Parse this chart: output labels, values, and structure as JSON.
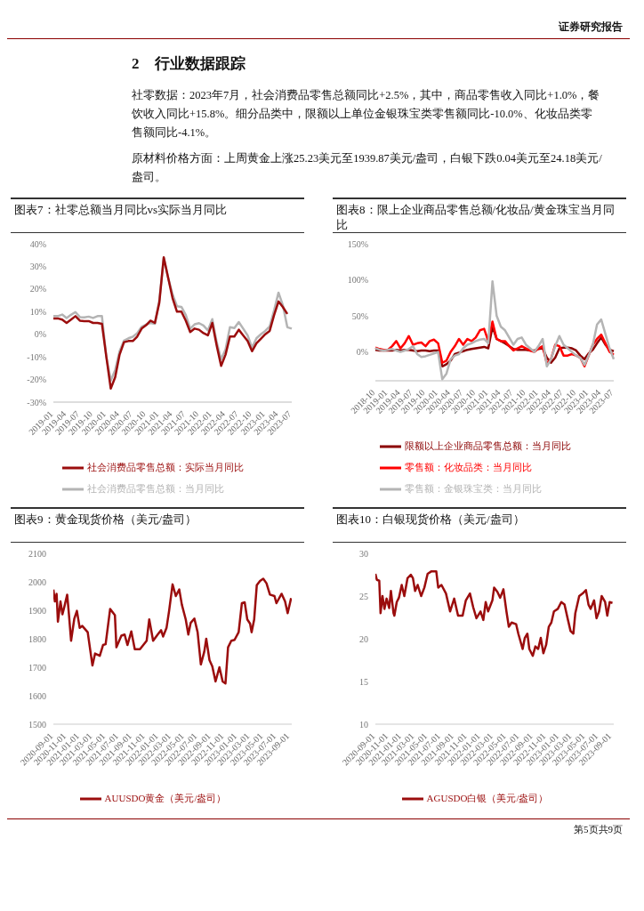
{
  "chart_data": [
    {
      "type": "line",
      "title": "图表7：社零总额当月同比vs实际当月同比",
      "annotations": [
        "证券研究报告",
        "2　行业数据跟踪",
        "社零数据：2023年7月，社会消费品零售总额同比+2.5%，其中，商品零售收入同比+1.0%，餐饮收入同比+15.8%。细分品类中，限额以上单位金银珠宝类零售额同比-10.0%、化妆品类零售额同比-4.1%。",
        "原材料价格方面：上周黄金上涨25.23美元至1939.87美元/盎司，白银下跌0.04美元至24.18美元/盎司。",
        "第5页共9页"
      ],
      "categories": [
        "2019-01",
        null,
        null,
        "2019-04",
        null,
        null,
        "2019-07",
        null,
        null,
        "2019-10",
        null,
        null,
        "2020-01",
        null,
        null,
        "2020-04",
        null,
        null,
        "2020-07",
        null,
        null,
        "2020-10",
        null,
        null,
        "2021-01",
        null,
        null,
        "2021-04",
        null,
        null,
        "2021-07",
        null,
        null,
        "2021-10",
        null,
        null,
        "2022-01",
        null,
        null,
        "2022-04",
        null,
        null,
        "2022-07",
        null,
        null,
        "2022-10",
        null,
        null,
        "2023-01",
        null,
        null,
        "2023-04",
        null,
        null,
        "2023-07"
      ],
      "series": [
        {
          "name": "社会消费品零售总额：当月同比",
          "color": "#b4b4b4",
          "values": [
            8,
            8,
            8.7,
            7.2,
            8.6,
            9.8,
            7.6,
            7.5,
            7.8,
            7.2,
            8,
            8,
            -10,
            -20.5,
            -15.8,
            -7.5,
            -2.8,
            -1.8,
            -1.1,
            0.5,
            3.3,
            4.3,
            5,
            4.6,
            15,
            33.8,
            25,
            17.7,
            12.4,
            12.1,
            8.5,
            2.5,
            4.4,
            4.9,
            3.9,
            1.7,
            6.7,
            -3.5,
            -11.1,
            -6.7,
            3.1,
            2.7,
            5.4,
            2.5,
            -0.5,
            -5.9,
            -1.8,
            0,
            1.5,
            3.5,
            10.6,
            18.4,
            12.7,
            3.1,
            2.5
          ]
        },
        {
          "name": "社会消费品零售总额：实际当月同比",
          "color": "#9b0d0d",
          "values": [
            7,
            7,
            6.5,
            5,
            6.5,
            8,
            6,
            5.8,
            5.8,
            5,
            5,
            4.6,
            -10,
            -24,
            -19,
            -9,
            -3.5,
            -3,
            -3,
            -1,
            2.5,
            4,
            6,
            5,
            14,
            34,
            25,
            16,
            10,
            10,
            6,
            1,
            2.5,
            2,
            0.5,
            -0.5,
            5,
            -5,
            -14,
            -9,
            -1,
            -1,
            2,
            -0.5,
            -3,
            -7.5,
            -4,
            -2,
            0,
            1.5,
            8.5,
            14.5,
            12,
            9,
            null
          ]
        }
      ],
      "ylim": [
        -30,
        40
      ],
      "yticks": [
        {
          "value": -30,
          "label": "-30%"
        },
        {
          "value": -20,
          "label": "-20%"
        },
        {
          "value": -10,
          "label": "-10%"
        },
        {
          "value": 0,
          "label": "0%"
        },
        {
          "value": 10,
          "label": "10%"
        },
        {
          "value": 20,
          "label": "20%"
        },
        {
          "value": 30,
          "label": "30%"
        },
        {
          "value": 40,
          "label": "40%"
        }
      ],
      "legend": "bottom"
    },
    {
      "type": "line",
      "title": "图表8：限上企业商品零售总额/化妆品/黄金珠宝当月同比",
      "categories": [
        "2018-10",
        null,
        null,
        "2019-01",
        null,
        null,
        "2019-04",
        null,
        null,
        "2019-07",
        null,
        null,
        "2019-10",
        null,
        null,
        "2020-01",
        null,
        null,
        "2020-04",
        null,
        null,
        "2020-07",
        null,
        null,
        "2020-10",
        null,
        null,
        "2021-01",
        null,
        null,
        "2021-04",
        null,
        null,
        "2021-07",
        null,
        null,
        "2021-10",
        null,
        null,
        "2022-01",
        null,
        null,
        "2022-04",
        null,
        null,
        "2022-07",
        null,
        null,
        "2022-10",
        null,
        null,
        "2023-01",
        null,
        null,
        "2023-04",
        null,
        null,
        "2023-07"
      ],
      "series": [
        {
          "name": "限额以上企业商品零售总额：当月同比",
          "color": "#8b0000",
          "values": [
            3,
            2,
            2,
            2,
            2,
            3,
            2,
            3,
            3,
            2,
            1,
            2,
            2,
            1,
            2,
            2,
            -20,
            -17,
            -12,
            -3,
            -1,
            1,
            3,
            4,
            5,
            6,
            7,
            5,
            35,
            18,
            15,
            12,
            8,
            4,
            3,
            3,
            3,
            2,
            2,
            4,
            5,
            -8,
            -15,
            -8,
            5,
            6,
            6,
            5,
            2,
            -5,
            -10,
            -2,
            3,
            12,
            20,
            10,
            3,
            1
          ]
        },
        {
          "name": "零售额：化妆品类：当月同比",
          "color": "#ff0000",
          "values": [
            6,
            4,
            3,
            3,
            8,
            15,
            5,
            12,
            22,
            10,
            12,
            13,
            8,
            15,
            17,
            12,
            -15,
            -12,
            0,
            8,
            18,
            10,
            18,
            15,
            20,
            30,
            32,
            15,
            42,
            18,
            15,
            15,
            8,
            2,
            5,
            8,
            5,
            2,
            0,
            5,
            8,
            -16,
            -10,
            10,
            8,
            -5,
            -5,
            -3,
            -5,
            -8,
            -20,
            -5,
            10,
            18,
            24,
            12,
            0,
            -4
          ]
        },
        {
          "name": "零售额：金银珠宝类：当月同比",
          "color": "#b4b4b4",
          "values": [
            5,
            3,
            2,
            3,
            4,
            2,
            0,
            2,
            4,
            8,
            -3,
            -7,
            -6,
            -4,
            -2,
            0,
            -38,
            -30,
            -10,
            -5,
            -3,
            5,
            10,
            12,
            15,
            17,
            18,
            12,
            98,
            50,
            35,
            30,
            20,
            10,
            18,
            20,
            10,
            5,
            0,
            8,
            18,
            -20,
            -10,
            8,
            22,
            10,
            5,
            0,
            -5,
            -8,
            -18,
            -5,
            10,
            38,
            45,
            25,
            5,
            -10
          ]
        }
      ],
      "ylim": [
        -40,
        150
      ],
      "yticks": [
        {
          "value": 0,
          "label": "0%"
        },
        {
          "value": 50,
          "label": "50%"
        },
        {
          "value": 100,
          "label": "100%"
        },
        {
          "value": 150,
          "label": "150%"
        }
      ],
      "legend": "bottom"
    },
    {
      "type": "line",
      "title": "图表9：黄金现货价格（美元/盎司）",
      "x": [
        "2020-09-01",
        "2020-09-08",
        "2020-09-16",
        "2020-09-22",
        "2020-10-04",
        "2020-10-13",
        "2020-10-22",
        "2020-11-04",
        "2020-11-12",
        "2020-11-22",
        "2020-12-07",
        "2020-12-19",
        "2021-01-01",
        "2021-01-13",
        "2021-02-07",
        "2021-03-01",
        "2021-03-13",
        "2021-04-04",
        "2021-04-19",
        "2021-05-01",
        "2021-05-22",
        "2021-06-13",
        "2021-06-20",
        "2021-07-13",
        "2021-07-28",
        "2021-08-10",
        "2021-08-28",
        "2021-09-13",
        "2021-10-07",
        "2021-11-07",
        "2021-11-19",
        "2021-12-07",
        "2021-12-28",
        "2022-01-13",
        "2022-01-22",
        "2022-02-07",
        "2022-02-19",
        "2022-03-07",
        "2022-03-22",
        "2022-04-07",
        "2022-04-19",
        "2022-05-07",
        "2022-05-19",
        "2022-05-30",
        "2022-06-16",
        "2022-07-01",
        "2022-07-16",
        "2022-08-01",
        "2022-08-10",
        "2022-08-25",
        "2022-09-07",
        "2022-09-22",
        "2022-10-10",
        "2022-10-25",
        "2022-11-07",
        "2022-11-19",
        "2022-12-04",
        "2022-12-19",
        "2023-01-07",
        "2023-01-22",
        "2023-02-04",
        "2023-02-16",
        "2023-03-01",
        "2023-03-08",
        "2023-03-20",
        "2023-04-01",
        "2023-04-16",
        "2023-05-01",
        "2023-05-16",
        "2023-06-01",
        "2023-06-22",
        "2023-07-01",
        "2023-07-25",
        "2023-08-10",
        "2023-08-22",
        "2023-09-07"
      ],
      "series": [
        {
          "name": "AUUSDO黄金（美元/盎司）",
          "color": "#9b0d0d",
          "values": [
            1973,
            1931,
            1958,
            1860,
            1931,
            1886,
            1913,
            1955,
            1886,
            1793,
            1871,
            1898,
            1838,
            1845,
            1823,
            1706,
            1748,
            1740,
            1778,
            1781,
            1905,
            1883,
            1770,
            1811,
            1815,
            1778,
            1826,
            1763,
            1763,
            1793,
            1868,
            1793,
            1815,
            1830,
            1808,
            1838,
            1898,
            1991,
            1950,
            1973,
            1920,
            1868,
            1815,
            1856,
            1871,
            1823,
            1710,
            1755,
            1800,
            1725,
            1703,
            1650,
            1700,
            1650,
            1643,
            1770,
            1793,
            1796,
            1823,
            1925,
            1928,
            1868,
            1853,
            1823,
            1868,
            1988,
            2003,
            2011,
            1995,
            1955,
            1950,
            1925,
            1958,
            1931,
            1890,
            1943
          ]
        }
      ],
      "xlim": [
        "2020-09-01",
        "2023-09-10"
      ],
      "xticks": [
        "2020-09-01",
        "2020-11-01",
        "2021-01-01",
        "2021-03-01",
        "2021-05-01",
        "2021-07-01",
        "2021-09-01",
        "2021-11-01",
        "2022-01-01",
        "2022-03-01",
        "2022-05-01",
        "2022-07-01",
        "2022-09-01",
        "2022-11-01",
        "2023-01-01",
        "2023-03-01",
        "2023-05-01",
        "2023-07-01",
        "2023-09-01"
      ],
      "ylim": [
        1500,
        2100
      ],
      "yticks": [
        1500,
        1600,
        1700,
        1800,
        1900,
        2000,
        2100
      ],
      "legend": "bottom"
    },
    {
      "type": "line",
      "title": "图表10：白银现货价格（美元/盎司）",
      "x": [
        "2020-09-01",
        "2020-09-08",
        "2020-09-19",
        "2020-09-25",
        "2020-10-04",
        "2020-10-13",
        "2020-10-23",
        "2020-11-04",
        "2020-11-12",
        "2020-11-24",
        "2020-11-28",
        "2020-12-09",
        "2020-12-19",
        "2021-01-01",
        "2021-01-13",
        "2021-01-28",
        "2021-02-12",
        "2021-02-22",
        "2021-03-04",
        "2021-03-16",
        "2021-04-01",
        "2021-04-16",
        "2021-05-01",
        "2021-05-19",
        "2021-06-10",
        "2021-06-19",
        "2021-07-04",
        "2021-07-25",
        "2021-08-13",
        "2021-09-01",
        "2021-09-19",
        "2021-10-10",
        "2021-10-25",
        "2021-11-13",
        "2021-11-28",
        "2021-12-13",
        "2022-01-01",
        "2022-01-14",
        "2022-01-25",
        "2022-02-05",
        "2022-02-25",
        "2022-03-05",
        "2022-03-20",
        "2022-04-02",
        "2022-04-17",
        "2022-05-01",
        "2022-05-12",
        "2022-05-25",
        "2022-06-15",
        "2022-06-25",
        "2022-07-15",
        "2022-07-25",
        "2022-08-06",
        "2022-08-15",
        "2022-08-31",
        "2022-09-12",
        "2022-09-25",
        "2022-10-07",
        "2022-10-19",
        "2022-11-01",
        "2022-11-13",
        "2022-11-25",
        "2022-12-07",
        "2022-12-25",
        "2023-01-10",
        "2023-01-25",
        "2023-02-10",
        "2023-02-22",
        "2023-03-07",
        "2023-03-16",
        "2023-04-03",
        "2023-04-19",
        "2023-05-04",
        "2023-05-16",
        "2023-05-26",
        "2023-06-11",
        "2023-06-22",
        "2023-07-04",
        "2023-07-16",
        "2023-08-01",
        "2023-08-11",
        "2023-08-22",
        "2023-09-04"
      ],
      "series": [
        {
          "name": "AGUSDO白银（美元/盎司）",
          "color": "#9b0d0d",
          "values": [
            27.6,
            26.9,
            26.8,
            23.0,
            25.0,
            23.5,
            24.7,
            23.6,
            25.6,
            23.0,
            22.7,
            24.3,
            24.8,
            26.3,
            25.0,
            27.1,
            27.5,
            27.1,
            25.6,
            26.3,
            25.0,
            26.0,
            27.6,
            27.9,
            27.9,
            26.0,
            26.3,
            25.3,
            23.2,
            24.7,
            22.7,
            22.7,
            24.5,
            25.3,
            23.7,
            22.4,
            23.2,
            22.2,
            24.3,
            23.2,
            24.5,
            26.0,
            25.5,
            24.8,
            25.8,
            23.2,
            21.4,
            21.9,
            21.7,
            20.6,
            18.8,
            20.1,
            20.6,
            18.8,
            18.0,
            19.1,
            18.8,
            20.1,
            18.3,
            19.3,
            21.4,
            21.9,
            23.2,
            23.5,
            24.3,
            24.0,
            22.2,
            20.9,
            20.6,
            23.0,
            25.0,
            25.3,
            25.7,
            24.0,
            23.5,
            24.5,
            22.4,
            23.2,
            25.0,
            24.3,
            22.7,
            24.3,
            24.2
          ]
        }
      ],
      "xlim": [
        "2020-09-01",
        "2023-09-10"
      ],
      "xticks": [
        "2020-09-01",
        "2020-11-01",
        "2021-01-01",
        "2021-03-01",
        "2021-05-01",
        "2021-07-01",
        "2021-09-01",
        "2021-11-01",
        "2022-01-01",
        "2022-03-01",
        "2022-05-01",
        "2022-07-01",
        "2022-09-01",
        "2022-11-01",
        "2023-01-01",
        "2023-03-01",
        "2023-05-01",
        "2023-07-01",
        "2023-09-01"
      ],
      "ylim": [
        10,
        30
      ],
      "yticks": [
        10,
        15,
        20,
        25,
        30
      ],
      "legend": "bottom"
    }
  ]
}
